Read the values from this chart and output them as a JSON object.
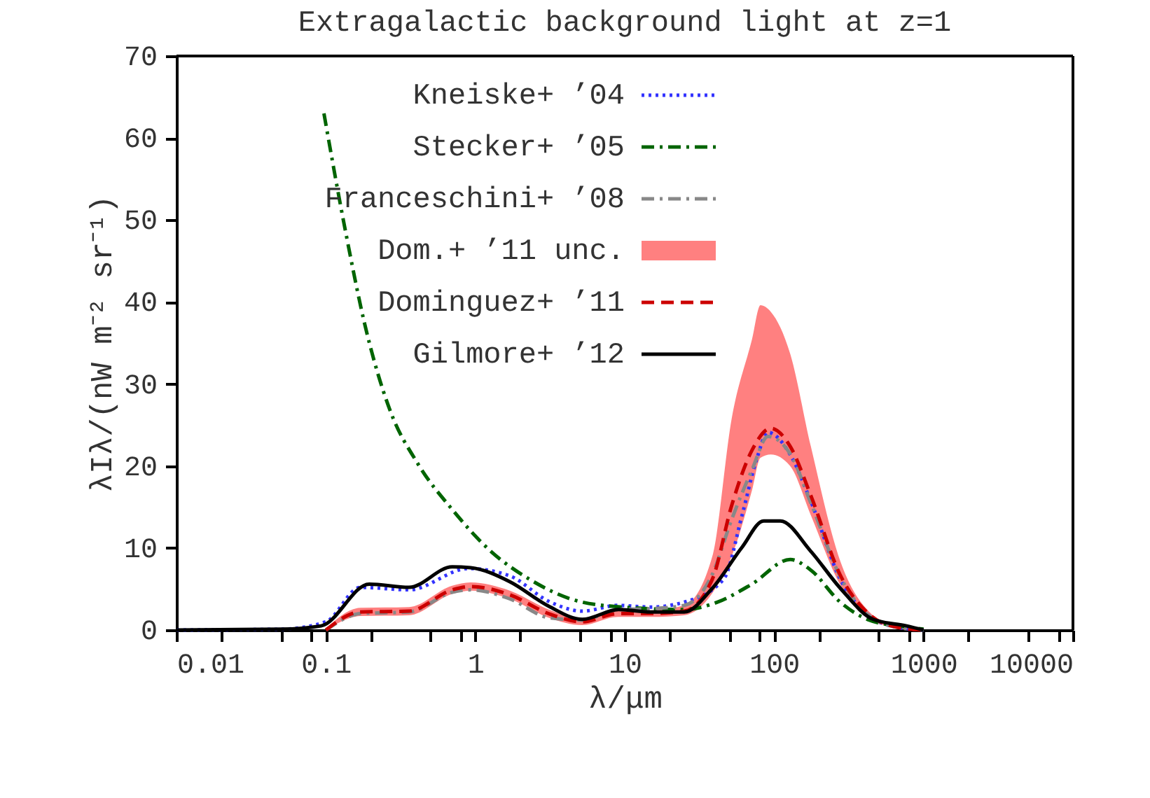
{
  "chart_data": {
    "type": "line",
    "title": "Extragalactic background light at z=1",
    "xlabel": "λ/μm",
    "ylabel": "λIλ/(nW m⁻² sr⁻¹)",
    "log": "x",
    "grid": false,
    "legend": "top left",
    "marker": "none",
    "xlim": [
      0.01,
      10000
    ],
    "ylim": [
      0,
      70
    ],
    "xticks": [
      0.01,
      {
        "value": 0.02,
        "label": null
      },
      {
        "value": 0.05,
        "label": null
      },
      {
        "value": 0.08,
        "label": null
      },
      0.1,
      {
        "value": 0.2,
        "label": null
      },
      {
        "value": 0.5,
        "label": null
      },
      {
        "value": 0.8,
        "label": null
      },
      1,
      {
        "value": 2,
        "label": null
      },
      {
        "value": 5,
        "label": null
      },
      {
        "value": 8,
        "label": null
      },
      10,
      {
        "value": 20,
        "label": null
      },
      {
        "value": 50,
        "label": null
      },
      {
        "value": 80,
        "label": null
      },
      100,
      {
        "value": 200,
        "label": null
      },
      {
        "value": 500,
        "label": null
      },
      {
        "value": 800,
        "label": null
      },
      1000,
      {
        "value": 2000,
        "label": null
      },
      {
        "value": 5000,
        "label": null
      },
      {
        "value": 8000,
        "label": null
      },
      10000
    ],
    "yticks": [
      0,
      10,
      20,
      30,
      40,
      50,
      60,
      70
    ],
    "series": [
      {
        "name": "Kneiske+ ’04",
        "color": "#3333ff",
        "line_style": "dotted",
        "x": [
          0.01,
          0.05,
          0.1,
          0.17,
          0.36,
          0.9,
          1.7,
          3.1,
          5.2,
          9,
          15,
          25,
          46,
          61,
          76,
          91,
          128,
          176,
          277,
          434,
          680,
          1000
        ],
        "values": [
          0,
          0.1,
          1,
          5.2,
          4.9,
          7.5,
          6.6,
          3.5,
          2.3,
          3.0,
          2.8,
          3.4,
          6.2,
          14,
          20.7,
          24.1,
          21.4,
          15.7,
          6.2,
          1.7,
          0.3,
          0
        ]
      },
      {
        "name": "Stecker+ ’05",
        "color": "#006400",
        "line_style": "dashdot",
        "x": [
          0.097,
          0.136,
          0.183,
          0.266,
          0.415,
          0.7,
          1.27,
          2.3,
          4.5,
          8.2,
          25,
          41.8,
          71,
          128,
          176,
          277,
          434,
          680,
          1000
        ],
        "values": [
          63,
          48.4,
          37.1,
          27,
          20.2,
          14.7,
          9.6,
          6.2,
          3.7,
          2.9,
          2.5,
          3.4,
          5.6,
          8.6,
          7.3,
          3.4,
          1.2,
          0.5,
          0.1
        ]
      },
      {
        "name": "Franceschini+ ’08",
        "color": "#888888",
        "line_style": "dashdot",
        "x": [
          0.1,
          0.17,
          0.36,
          0.7,
          0.93,
          1.7,
          3.1,
          5.2,
          9,
          15,
          25,
          38.6,
          52,
          71,
          91,
          128,
          176,
          277,
          434,
          680,
          1000
        ],
        "values": [
          0,
          2.0,
          2.2,
          4.6,
          4.9,
          3.8,
          1.5,
          1.2,
          2.5,
          2.6,
          3.0,
          6.8,
          13.5,
          19.5,
          23.6,
          21.5,
          15.5,
          6.5,
          1.7,
          0.3,
          0
        ]
      },
      {
        "name": "Dom.+ ’11 unc.",
        "type": "area",
        "color": "#ff8080",
        "x": [
          0.1,
          0.17,
          0.36,
          0.7,
          0.93,
          1.7,
          3.1,
          5.2,
          9,
          15,
          25,
          38.6,
          52,
          71,
          81,
          95,
          128,
          176,
          277,
          434,
          680,
          1000
        ],
        "values": [
          null,
          null,
          null,
          null,
          null,
          null,
          null,
          null,
          null,
          null,
          null,
          null,
          null,
          null,
          null,
          null,
          null,
          null,
          null,
          null,
          null,
          null
        ],
        "lower": [
          0,
          1.7,
          1.8,
          4.4,
          4.8,
          3.8,
          1.5,
          0.6,
          1.6,
          1.6,
          1.8,
          4.5,
          9,
          17,
          21,
          21.4,
          20,
          14,
          5.5,
          1.5,
          0.2,
          0
        ],
        "upper": [
          0.2,
          2.7,
          2.8,
          5.4,
          5.8,
          4.8,
          2.5,
          1.4,
          2.4,
          2.4,
          3,
          9,
          25.8,
          35.4,
          39.6,
          38.8,
          33.7,
          22.4,
          8.4,
          2.2,
          0.4,
          0.1
        ]
      },
      {
        "name": "Dominguez+ ’11",
        "color": "#cc0000",
        "line_style": "dashed",
        "x": [
          0.1,
          0.17,
          0.36,
          0.7,
          0.93,
          1.7,
          3.1,
          5.2,
          9,
          15,
          25,
          38.6,
          52,
          71,
          95,
          128,
          176,
          277,
          434,
          680,
          1000
        ],
        "values": [
          0,
          2.2,
          2.3,
          4.9,
          5.3,
          4.3,
          2.0,
          1.0,
          2.0,
          2.0,
          2.3,
          6.2,
          15.2,
          21.9,
          24.6,
          22.4,
          16.4,
          6.7,
          1.9,
          0.3,
          0
        ]
      },
      {
        "name": "Gilmore+ ’12",
        "color": "#000000",
        "line_style": "solid",
        "x": [
          0.01,
          0.05,
          0.093,
          0.195,
          0.36,
          0.7,
          0.93,
          1.7,
          3.1,
          5.2,
          9.1,
          14.9,
          25,
          38.6,
          61,
          85,
          110,
          176,
          277,
          460,
          770,
          1000
        ],
        "values": [
          0,
          0.1,
          0.5,
          5.6,
          5.2,
          7.7,
          7.6,
          5.9,
          2.9,
          1.3,
          2.5,
          2.2,
          2.2,
          5.1,
          10.1,
          13.3,
          13.3,
          9.6,
          5.1,
          1.3,
          0.5,
          0
        ]
      }
    ]
  }
}
